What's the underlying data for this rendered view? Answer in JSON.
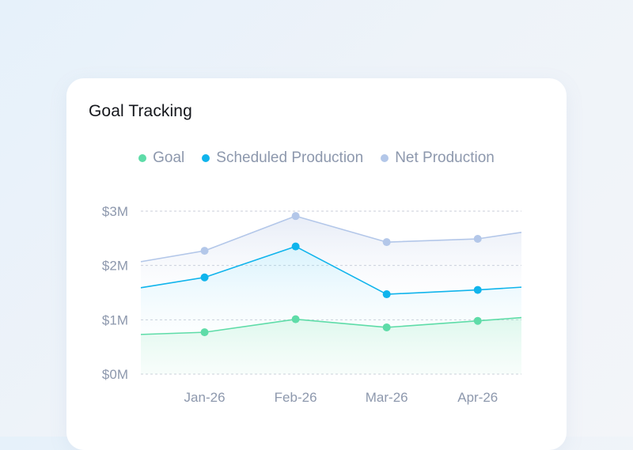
{
  "card": {
    "title": "Goal Tracking"
  },
  "colors": {
    "goal": "#5edca8",
    "scheduled": "#10b4ec",
    "net": "#b3c7e9",
    "grid": "#c9ced8"
  },
  "chart_data": {
    "type": "area",
    "title": "Goal Tracking",
    "legend_position": "top",
    "grid": true,
    "y_tick_labels": [
      "$0M",
      "$1M",
      "$2M",
      "$3M"
    ],
    "y_ticks": [
      0,
      1,
      2,
      3
    ],
    "ylim": [
      0,
      3
    ],
    "x_tick_labels": [
      "Jan-26",
      "Feb-26",
      "Mar-26",
      "Apr-26"
    ],
    "x_ticks": [
      1,
      2,
      3,
      4
    ],
    "xlim": [
      0.3,
      4.48
    ],
    "series": [
      {
        "name": "Goal",
        "x": [
          0.3,
          1,
          2,
          3,
          4,
          4.48
        ],
        "values": [
          0.73,
          0.77,
          1.01,
          0.86,
          0.98,
          1.04
        ],
        "markers": [
          false,
          true,
          true,
          true,
          true,
          false
        ]
      },
      {
        "name": "Scheduled Production",
        "x": [
          0.3,
          1,
          2,
          3,
          4,
          4.48
        ],
        "values": [
          1.59,
          1.78,
          2.35,
          1.47,
          1.55,
          1.6
        ],
        "markers": [
          false,
          true,
          true,
          true,
          true,
          false
        ]
      },
      {
        "name": "Net Production",
        "x": [
          0.3,
          1,
          2,
          3,
          4,
          4.48
        ],
        "values": [
          2.07,
          2.27,
          2.91,
          2.43,
          2.49,
          2.61
        ],
        "markers": [
          false,
          true,
          true,
          true,
          true,
          false
        ]
      }
    ]
  }
}
